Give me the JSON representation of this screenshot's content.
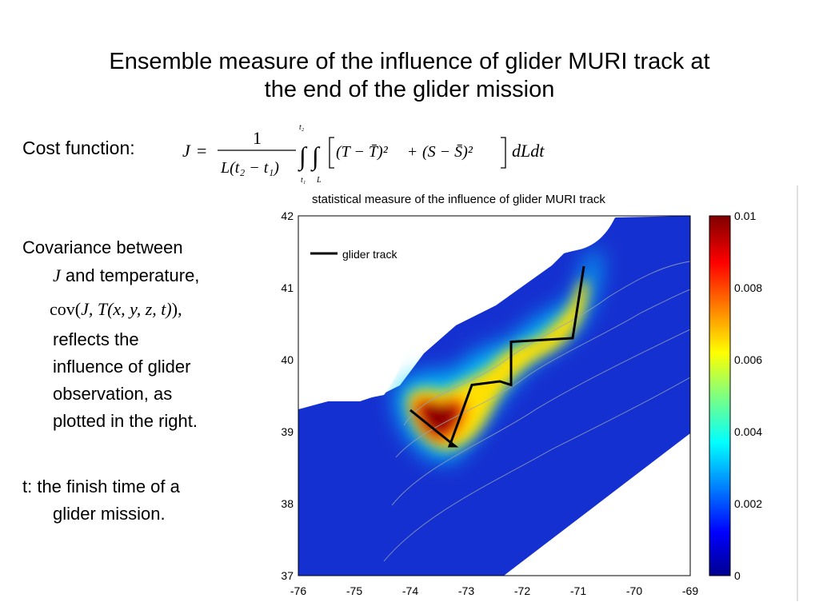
{
  "slide": {
    "title_line1": "Ensemble measure of the influence of glider MURI track at",
    "title_line2": "the end of the glider mission",
    "cost_label": "Cost function:",
    "formula": {
      "lhs": "J",
      "eq": "=",
      "numerator": "1",
      "denominator": "L(t₂ − t₁)",
      "upper_t": "t₂",
      "lower_t": "t₁",
      "lower_L": "L",
      "integrand_a": "(T − T̄)²",
      "plus": "+",
      "integrand_b": "(S − S̄)²",
      "tail": "dLdt"
    },
    "cov_line1": "Covariance between",
    "cov_line2_J": "J",
    "cov_line2_rest": " and temperature,",
    "cov_expr": {
      "fn": "cov(",
      "args": "J, T(x, y, z, t)",
      "close": "),"
    },
    "cov_line3": "reflects the",
    "cov_line4": "influence of glider",
    "cov_line5": "observation, as",
    "cov_line6": "plotted in the right.",
    "t_line1": "t: the finish time of a",
    "t_line2": "glider mission."
  },
  "figure": {
    "title": "statistical measure of the influence of glider MURI track",
    "legend_label": "glider track",
    "x_ticks": [
      "-76",
      "-75",
      "-74",
      "-73",
      "-72",
      "-71",
      "-70",
      "-69"
    ],
    "y_ticks": [
      "42",
      "41",
      "40",
      "39",
      "38",
      "37"
    ],
    "colorbar_ticks": [
      "0.01",
      "0.008",
      "0.006",
      "0.004",
      "0.002",
      "0"
    ],
    "colors": {
      "ocean_low": "#1030c8",
      "land": "#ffffff",
      "high": "#7a0000",
      "track": "#000000"
    }
  },
  "chart_data": {
    "type": "heatmap",
    "title": "statistical measure of the influence of glider MURI track",
    "xlim": [
      -76,
      -69
    ],
    "ylim": [
      37,
      42
    ],
    "color_range": [
      0,
      0.01
    ],
    "colorbar_ticks": [
      0,
      0.002,
      0.004,
      0.006,
      0.008,
      0.01
    ],
    "series": [
      {
        "name": "glider track",
        "x": [
          -70.9,
          -71.1,
          -72.2,
          -72.2,
          -72.4,
          -72.9,
          -73.3,
          -73.2,
          -74.0
        ],
        "y": [
          41.3,
          40.3,
          40.25,
          39.65,
          39.7,
          39.65,
          38.8,
          38.8,
          39.3
        ]
      }
    ],
    "grid": false,
    "legend_position": "top-left"
  }
}
